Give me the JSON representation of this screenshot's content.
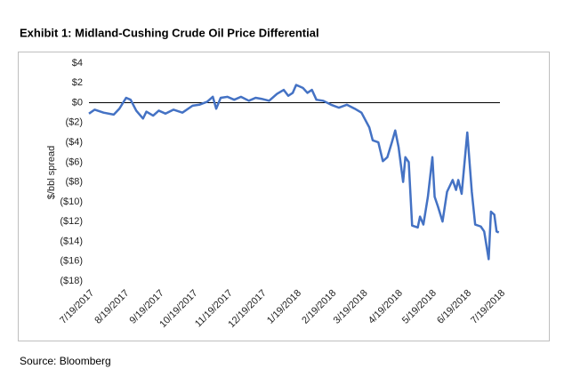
{
  "chart_data": {
    "type": "line",
    "title": "Exhibit 1: Midland-Cushing Crude Oil Price Differential",
    "y_label": "$/bbl spread",
    "source": "Source: Bloomberg",
    "x": [
      "7/19/2017",
      "7/24/2017",
      "8/1/2017",
      "8/10/2017",
      "8/15/2017",
      "8/21/2017",
      "8/25/2017",
      "8/30/2017",
      "9/5/2017",
      "9/8/2017",
      "9/14/2017",
      "9/19/2017",
      "9/25/2017",
      "10/2/2017",
      "10/10/2017",
      "10/19/2017",
      "10/25/2017",
      "11/1/2017",
      "11/6/2017",
      "11/9/2017",
      "11/13/2017",
      "11/19/2017",
      "11/25/2017",
      "12/1/2017",
      "12/8/2017",
      "12/14/2017",
      "12/19/2017",
      "12/26/2017",
      "1/2/2018",
      "1/8/2018",
      "1/12/2018",
      "1/16/2018",
      "1/19/2018",
      "1/25/2018",
      "1/29/2018",
      "2/2/2018",
      "2/6/2018",
      "2/12/2018",
      "2/19/2018",
      "2/26/2018",
      "3/5/2018",
      "3/12/2018",
      "3/18/2018",
      "3/25/2018",
      "3/28/2018",
      "4/2/2018",
      "4/6/2018",
      "4/10/2018",
      "4/14/2018",
      "4/17/2018",
      "4/20/2018",
      "4/24/2018",
      "4/26/2018",
      "4/29/2018",
      "5/2/2018",
      "5/7/2018",
      "5/9/2018",
      "5/12/2018",
      "5/16/2018",
      "5/20/2018",
      "5/22/2018",
      "5/25/2018",
      "5/29/2018",
      "6/2/2018",
      "6/7/2018",
      "6/10/2018",
      "6/12/2018",
      "6/15/2018",
      "6/20/2018",
      "6/24/2018",
      "6/27/2018",
      "7/2/2018",
      "7/5/2018",
      "7/9/2018",
      "7/11/2018",
      "7/14/2018",
      "7/16/2018",
      "7/18/2018"
    ],
    "series": [
      {
        "name": "Midland-Cushing",
        "color": "#4472c4",
        "values": [
          -1.1,
          -0.7,
          -1.0,
          -1.2,
          -0.6,
          0.5,
          0.3,
          -0.8,
          -1.6,
          -0.9,
          -1.3,
          -0.8,
          -1.1,
          -0.7,
          -1.0,
          -0.3,
          -0.2,
          0.1,
          0.6,
          -0.6,
          0.5,
          0.6,
          0.3,
          0.6,
          0.2,
          0.5,
          0.4,
          0.2,
          0.9,
          1.3,
          0.7,
          1.0,
          1.8,
          1.5,
          1.0,
          1.3,
          0.3,
          0.2,
          -0.2,
          -0.5,
          -0.2,
          -0.6,
          -1.0,
          -2.5,
          -3.8,
          -4.0,
          -5.9,
          -5.5,
          -4.0,
          -2.8,
          -4.5,
          -8.0,
          -5.5,
          -6.0,
          -12.4,
          -12.6,
          -11.5,
          -12.3,
          -9.5,
          -5.5,
          -9.5,
          -10.5,
          -12.0,
          -9.0,
          -7.8,
          -8.8,
          -7.8,
          -9.2,
          -3.0,
          -9.0,
          -12.3,
          -12.5,
          -13.0,
          -15.8,
          -11.0,
          -11.3,
          -13.0,
          -13.1
        ]
      }
    ],
    "xlim": [
      "7/19/2017",
      "7/19/2018"
    ],
    "xticks": [
      "7/19/2017",
      "8/19/2017",
      "9/19/2017",
      "10/19/2017",
      "11/19/2017",
      "12/19/2017",
      "1/19/2018",
      "2/19/2018",
      "3/19/2018",
      "4/19/2018",
      "5/19/2018",
      "6/19/2018",
      "7/19/2018"
    ],
    "ylim": [
      -18,
      4
    ],
    "yticks": [
      {
        "value": 4,
        "label": "$4"
      },
      {
        "value": 2,
        "label": "$2"
      },
      {
        "value": 0,
        "label": "$0"
      },
      {
        "value": -2,
        "label": "($2)"
      },
      {
        "value": -4,
        "label": "($4)"
      },
      {
        "value": -6,
        "label": "($6)"
      },
      {
        "value": -8,
        "label": "($8)"
      },
      {
        "value": -10,
        "label": "($10)"
      },
      {
        "value": -12,
        "label": "($12)"
      },
      {
        "value": -14,
        "label": "($14)"
      },
      {
        "value": -16,
        "label": "($16)"
      },
      {
        "value": -18,
        "label": "($18)"
      }
    ],
    "grid": false
  }
}
